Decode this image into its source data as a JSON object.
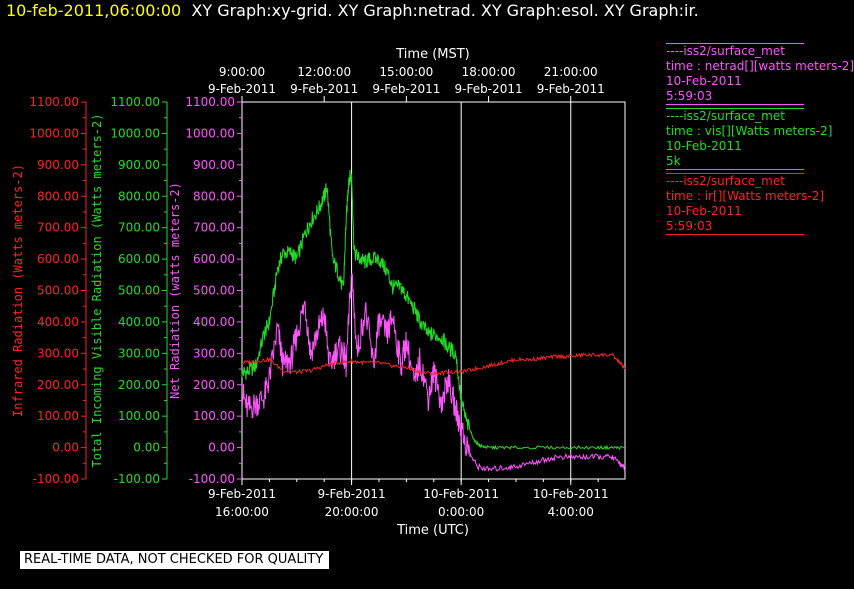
{
  "header": {
    "timestamp": "10-feb-2011,06:00:00",
    "graphs": "XY Graph:xy-grid.  XY Graph:netrad.  XY Graph:esol.  XY Graph:ir."
  },
  "legend": [
    {
      "lines": [
        "----iss2/surface_met",
        "time : netrad[][watts meters-2]",
        "10-Feb-2011",
        "5:59:03"
      ],
      "color": "#ff55ff"
    },
    {
      "lines": [
        "----iss2/surface_met",
        "time : vis[][Watts meters-2]",
        "10-Feb-2011",
        "5k"
      ],
      "color": "#22dd22"
    },
    {
      "lines": [
        "----iss2/surface_met",
        "time : ir[][Watts meters-2]",
        "10-Feb-2011",
        "5:59:03"
      ],
      "color": "#ff2222"
    }
  ],
  "footer": "REAL-TIME DATA, NOT CHECKED FOR QUALITY",
  "chart_data": {
    "type": "line",
    "top_axis": {
      "title": "Time (MST)",
      "ticks": [
        {
          "time": "9:00:00",
          "date": "9-Feb-2011",
          "utc_hours": 16
        },
        {
          "time": "12:00:00",
          "date": "9-Feb-2011",
          "utc_hours": 19
        },
        {
          "time": "15:00:00",
          "date": "9-Feb-2011",
          "utc_hours": 22
        },
        {
          "time": "18:00:00",
          "date": "9-Feb-2011",
          "utc_hours": 25
        },
        {
          "time": "21:00:00",
          "date": "9-Feb-2011",
          "utc_hours": 28
        }
      ]
    },
    "bottom_axis": {
      "title": "Time (UTC)",
      "ticks": [
        {
          "date": "9-Feb-2011",
          "time": "16:00:00",
          "utc_hours": 16
        },
        {
          "date": "9-Feb-2011",
          "time": "20:00:00",
          "utc_hours": 20
        },
        {
          "date": "10-Feb-2011",
          "time": "0:00:00",
          "utc_hours": 24
        },
        {
          "date": "10-Feb-2011",
          "time": "4:00:00",
          "utc_hours": 28
        }
      ]
    },
    "xlim_utc_hours": [
      16,
      29.98
    ],
    "ylim": [
      -100,
      1100
    ],
    "y_ticks": [
      "1100.00",
      "1000.00",
      "900.00",
      "800.00",
      "700.00",
      "600.00",
      "500.00",
      "400.00",
      "300.00",
      "200.00",
      "100.00",
      "0.00",
      "-100.00"
    ],
    "y_axes": [
      {
        "label": "Infrared Radiation (Watts meters-2)",
        "color": "#ff2222"
      },
      {
        "label": "Total Incoming Visible Radiation (Watts meters-2)",
        "color": "#22dd22"
      },
      {
        "label": "Net Radiation (watts meters-2)",
        "color": "#ff55ff"
      }
    ],
    "grid": "vertical lines at bottom-axis ticks",
    "series": [
      {
        "name": "time : vis[][Watts meters-2]",
        "color": "#22dd22",
        "x": [
          16.0,
          16.2,
          16.5,
          16.8,
          17.0,
          17.3,
          17.5,
          17.8,
          18.0,
          18.3,
          18.5,
          18.8,
          19.0,
          19.1,
          19.3,
          19.5,
          19.7,
          19.8,
          19.9,
          20.0,
          20.1,
          20.3,
          20.5,
          20.7,
          21.0,
          21.3,
          21.5,
          21.8,
          22.0,
          22.3,
          22.5,
          22.8,
          23.0,
          23.3,
          23.5,
          23.8,
          24.0,
          24.2,
          24.5,
          24.7,
          25.0,
          25.5,
          26.0,
          27.0,
          28.0,
          29.0,
          29.5,
          29.98
        ],
        "y": [
          240,
          240,
          260,
          360,
          400,
          570,
          620,
          620,
          600,
          680,
          720,
          760,
          800,
          830,
          600,
          560,
          500,
          720,
          860,
          860,
          620,
          600,
          590,
          600,
          600,
          560,
          510,
          510,
          480,
          440,
          400,
          360,
          360,
          350,
          320,
          300,
          150,
          80,
          20,
          5,
          0,
          0,
          0,
          0,
          0,
          0,
          0,
          0
        ]
      },
      {
        "name": "time : netrad[][watts meters-2]",
        "color": "#ff55ff",
        "x": [
          16.0,
          16.2,
          16.5,
          16.8,
          17.0,
          17.3,
          17.5,
          17.8,
          18.0,
          18.3,
          18.5,
          18.8,
          19.0,
          19.2,
          19.5,
          19.7,
          19.8,
          20.0,
          20.2,
          20.5,
          20.8,
          21.0,
          21.3,
          21.5,
          21.8,
          22.0,
          22.3,
          22.5,
          22.8,
          23.0,
          23.3,
          23.5,
          23.8,
          24.0,
          24.3,
          24.6,
          25.0,
          25.5,
          26.0,
          26.5,
          27.0,
          27.5,
          28.0,
          28.5,
          29.0,
          29.5,
          29.8,
          29.98
        ],
        "y": [
          180,
          120,
          140,
          160,
          220,
          380,
          260,
          280,
          360,
          460,
          300,
          380,
          420,
          260,
          320,
          300,
          260,
          560,
          300,
          440,
          260,
          400,
          360,
          420,
          260,
          340,
          200,
          280,
          160,
          240,
          140,
          220,
          120,
          60,
          -20,
          -60,
          -70,
          -65,
          -60,
          -50,
          -40,
          -30,
          -30,
          -30,
          -30,
          -30,
          -50,
          -70
        ]
      },
      {
        "name": "time : ir[][Watts meters-2]",
        "color": "#ff2222",
        "x": [
          16.0,
          16.5,
          17.0,
          17.5,
          18.0,
          18.5,
          19.0,
          19.5,
          20.0,
          20.5,
          21.0,
          21.5,
          22.0,
          22.5,
          23.0,
          23.5,
          24.0,
          24.5,
          25.0,
          25.5,
          26.0,
          26.5,
          27.0,
          27.5,
          28.0,
          28.5,
          29.0,
          29.5,
          29.8,
          29.98
        ],
        "y": [
          270,
          275,
          280,
          245,
          240,
          245,
          260,
          270,
          275,
          270,
          270,
          260,
          255,
          240,
          235,
          240,
          240,
          250,
          260,
          270,
          280,
          280,
          285,
          290,
          290,
          295,
          295,
          295,
          270,
          250
        ]
      }
    ]
  }
}
